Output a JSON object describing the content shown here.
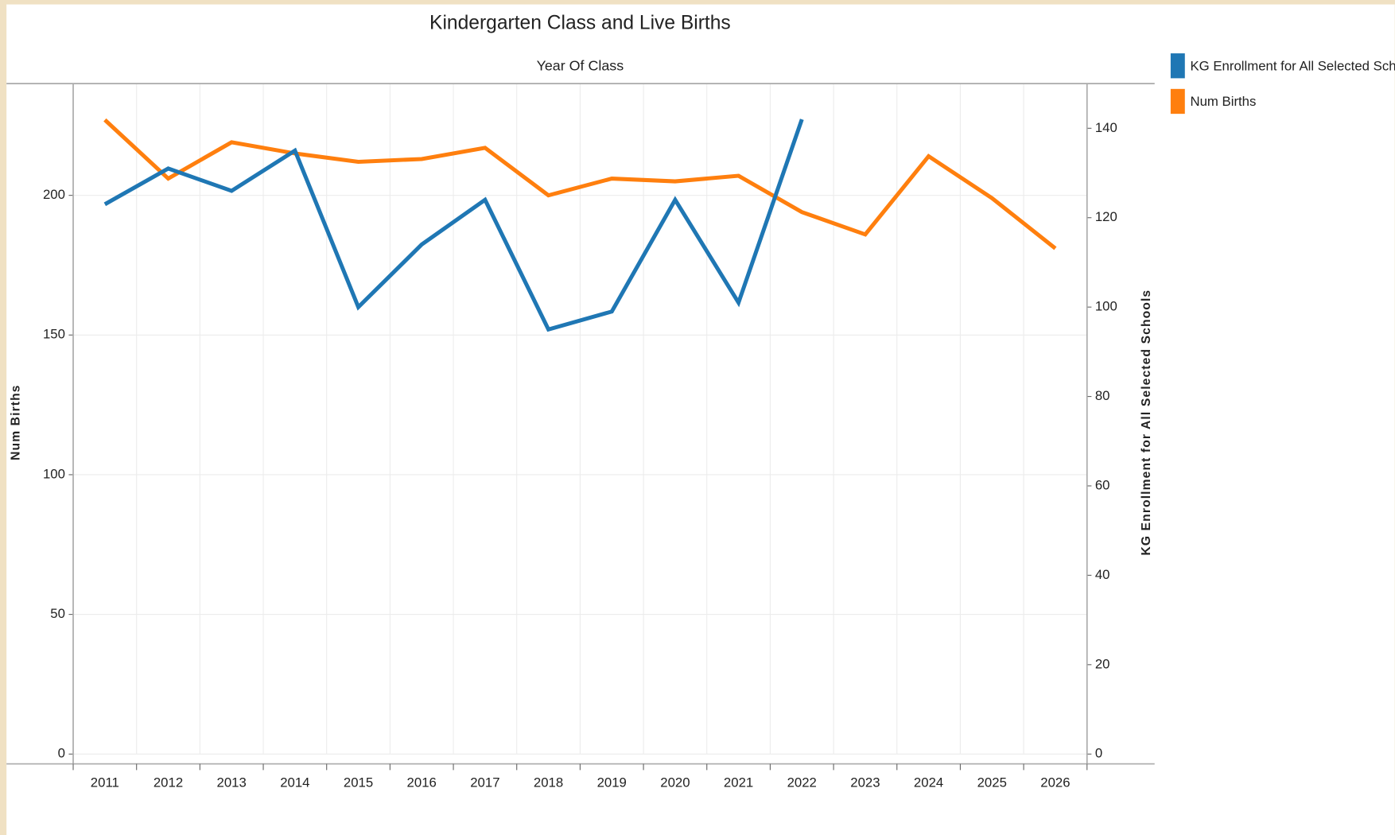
{
  "chart_data": {
    "type": "line",
    "title": "Kindergarten Class and Live Births",
    "x_label": "Year Of Class",
    "y_label": "Num Births",
    "y2_label": "KG Enrollment for All Selected Schools",
    "categories": [
      "2011",
      "2012",
      "2013",
      "2014",
      "2015",
      "2016",
      "2017",
      "2018",
      "2019",
      "2020",
      "2021",
      "2022",
      "2023",
      "2024",
      "2025",
      "2026"
    ],
    "series": [
      {
        "name": "KG Enrollment for All Selected Schools",
        "color": "#1f77b4",
        "axis": "y2",
        "values": [
          123,
          131,
          126,
          135,
          100,
          114,
          124,
          95,
          99,
          124,
          101,
          142,
          null,
          null,
          null,
          null
        ]
      },
      {
        "name": "Num Births",
        "color": "#ff7f0e",
        "values": [
          227,
          206,
          219,
          215,
          212,
          213,
          217,
          200,
          206,
          205,
          207,
          194,
          186,
          214,
          199,
          181
        ]
      }
    ],
    "ylim": [
      0,
      240
    ],
    "yticks": [
      0,
      50,
      100,
      150,
      200
    ],
    "y2lim": [
      0,
      150
    ],
    "y2ticks": [
      0,
      20,
      40,
      60,
      80,
      100,
      120,
      140
    ],
    "grid": true,
    "legend": "right"
  }
}
